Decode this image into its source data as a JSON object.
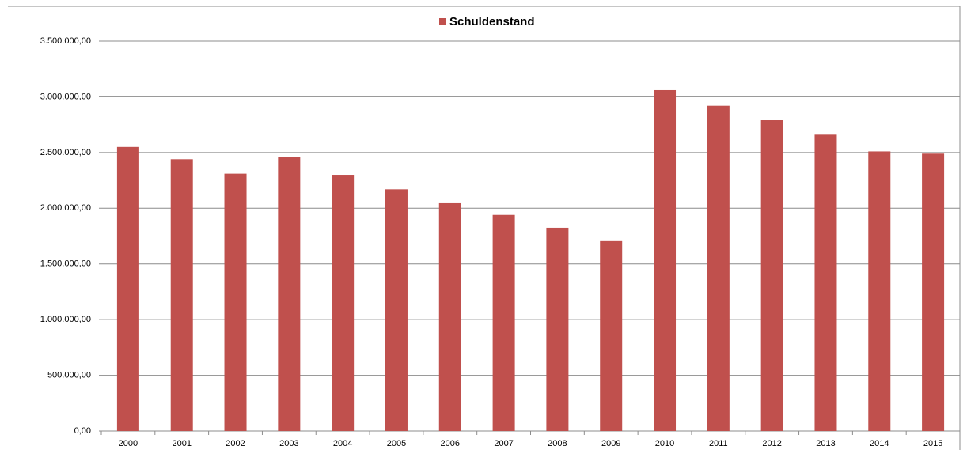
{
  "chart_data": {
    "type": "bar",
    "categories": [
      "2000",
      "2001",
      "2002",
      "2003",
      "2004",
      "2005",
      "2006",
      "2007",
      "2008",
      "2009",
      "2010",
      "2011",
      "2012",
      "2013",
      "2014",
      "2015"
    ],
    "series": [
      {
        "name": "Schuldenstand",
        "color": "#c0504d",
        "values": [
          2550000,
          2440000,
          2310000,
          2460000,
          2300000,
          2170000,
          2045000,
          1940000,
          1825000,
          1705000,
          3060000,
          2920000,
          2790000,
          2660000,
          2510000,
          2490000
        ]
      }
    ],
    "ylim": [
      0,
      3500000
    ],
    "yticks": [
      {
        "value": 0,
        "label": "0,00"
      },
      {
        "value": 500000,
        "label": "500.000,00"
      },
      {
        "value": 1000000,
        "label": "1.000.000,00"
      },
      {
        "value": 1500000,
        "label": "1.500.000,00"
      },
      {
        "value": 2000000,
        "label": "2.000.000,00"
      },
      {
        "value": 2500000,
        "label": "2.500.000,00"
      },
      {
        "value": 3000000,
        "label": "3.000.000,00"
      },
      {
        "value": 3500000,
        "label": "3.500.000,00"
      }
    ],
    "grid": true,
    "legend": "top"
  }
}
